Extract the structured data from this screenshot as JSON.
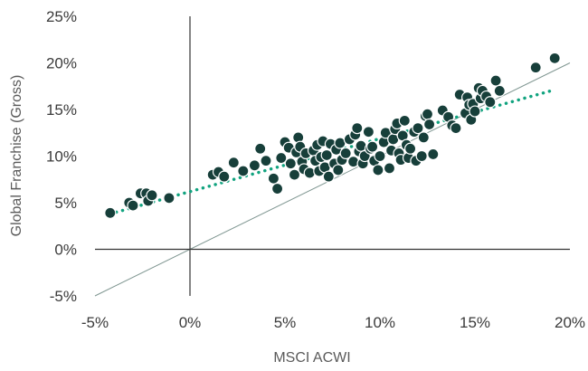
{
  "chart_data": {
    "type": "scatter",
    "title": "",
    "xlabel": "MSCI ACWI",
    "ylabel": "Global Franchise (Gross)",
    "xlim": [
      -5,
      20
    ],
    "ylim": [
      -5,
      25
    ],
    "x_ticks": [
      "-5%",
      "0%",
      "5%",
      "10%",
      "15%",
      "20%"
    ],
    "y_ticks": [
      "25%",
      "20%",
      "15%",
      "10%",
      "5%",
      "0%",
      "-5%"
    ],
    "grid": false,
    "legend": "none",
    "colors": {
      "points": "#173f3a",
      "point_edge": "#ffffff",
      "trendline": "#11a37f",
      "reference_line": "#7f9691",
      "axes": "#333333"
    },
    "reference_line": {
      "from": [
        -5,
        -5
      ],
      "to": [
        20,
        20
      ]
    },
    "trendline": {
      "style": "dotted",
      "from": [
        -4.2,
        3.8
      ],
      "to": [
        19,
        17
      ]
    },
    "series": [
      {
        "points": [
          [
            -4.2,
            3.9
          ],
          [
            -3.2,
            5.0
          ],
          [
            -3.0,
            4.7
          ],
          [
            -2.6,
            6.0
          ],
          [
            -2.3,
            6.0
          ],
          [
            -2.2,
            5.2
          ],
          [
            -2.0,
            5.8
          ],
          [
            -1.1,
            5.5
          ],
          [
            1.2,
            8.0
          ],
          [
            1.5,
            8.3
          ],
          [
            1.8,
            7.8
          ],
          [
            2.3,
            9.3
          ],
          [
            2.8,
            8.4
          ],
          [
            3.4,
            9.0
          ],
          [
            3.7,
            10.8
          ],
          [
            4.0,
            9.5
          ],
          [
            4.4,
            7.6
          ],
          [
            4.6,
            6.5
          ],
          [
            4.8,
            9.8
          ],
          [
            5.0,
            11.5
          ],
          [
            5.2,
            10.9
          ],
          [
            5.3,
            9.2
          ],
          [
            5.5,
            8.0
          ],
          [
            5.6,
            10.4
          ],
          [
            5.7,
            12.0
          ],
          [
            5.8,
            11.0
          ],
          [
            5.9,
            9.4
          ],
          [
            6.0,
            8.6
          ],
          [
            6.1,
            10.3
          ],
          [
            6.3,
            8.2
          ],
          [
            6.5,
            10.6
          ],
          [
            6.6,
            9.5
          ],
          [
            6.7,
            11.2
          ],
          [
            6.8,
            8.4
          ],
          [
            6.9,
            9.9
          ],
          [
            7.0,
            11.6
          ],
          [
            7.1,
            8.8
          ],
          [
            7.2,
            10.1
          ],
          [
            7.3,
            7.8
          ],
          [
            7.4,
            11.3
          ],
          [
            7.6,
            9.2
          ],
          [
            7.7,
            10.7
          ],
          [
            7.8,
            8.5
          ],
          [
            7.9,
            11.4
          ],
          [
            8.0,
            9.6
          ],
          [
            8.2,
            10.3
          ],
          [
            8.4,
            11.8
          ],
          [
            8.6,
            9.4
          ],
          [
            8.7,
            12.3
          ],
          [
            8.8,
            13.0
          ],
          [
            8.9,
            10.5
          ],
          [
            9.0,
            11.1
          ],
          [
            9.1,
            9.2
          ],
          [
            9.2,
            10.0
          ],
          [
            9.4,
            12.6
          ],
          [
            9.5,
            10.8
          ],
          [
            9.6,
            11.0
          ],
          [
            9.7,
            9.5
          ],
          [
            9.9,
            8.5
          ],
          [
            10.0,
            10.0
          ],
          [
            10.2,
            11.5
          ],
          [
            10.3,
            12.5
          ],
          [
            10.5,
            8.7
          ],
          [
            10.6,
            10.6
          ],
          [
            10.7,
            11.8
          ],
          [
            10.8,
            12.9
          ],
          [
            10.9,
            13.5
          ],
          [
            11.0,
            10.3
          ],
          [
            11.1,
            9.6
          ],
          [
            11.2,
            12.2
          ],
          [
            11.3,
            13.8
          ],
          [
            11.4,
            11.2
          ],
          [
            11.5,
            9.8
          ],
          [
            11.6,
            10.8
          ],
          [
            11.8,
            12.6
          ],
          [
            11.9,
            9.5
          ],
          [
            12.0,
            13.0
          ],
          [
            12.2,
            10.0
          ],
          [
            12.3,
            12.0
          ],
          [
            12.4,
            14.3
          ],
          [
            12.5,
            14.5
          ],
          [
            12.6,
            13.4
          ],
          [
            12.8,
            10.2
          ],
          [
            13.3,
            14.9
          ],
          [
            13.6,
            14.2
          ],
          [
            13.8,
            13.3
          ],
          [
            14.0,
            13.0
          ],
          [
            14.2,
            16.6
          ],
          [
            14.5,
            14.6
          ],
          [
            14.6,
            16.3
          ],
          [
            14.7,
            15.5
          ],
          [
            14.8,
            13.9
          ],
          [
            14.9,
            15.6
          ],
          [
            15.0,
            14.8
          ],
          [
            15.2,
            17.3
          ],
          [
            15.3,
            16.2
          ],
          [
            15.4,
            17.0
          ],
          [
            15.6,
            16.4
          ],
          [
            15.8,
            15.8
          ],
          [
            16.1,
            18.1
          ],
          [
            16.3,
            17.0
          ],
          [
            18.2,
            19.5
          ],
          [
            19.2,
            20.5
          ]
        ]
      }
    ]
  }
}
